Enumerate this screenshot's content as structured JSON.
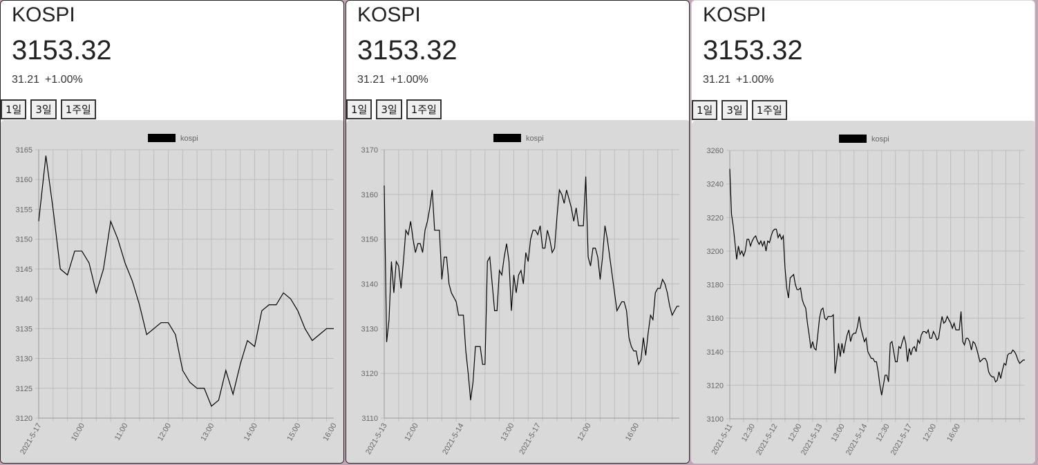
{
  "cards": [
    {
      "ticker": "KOSPI",
      "price": "3153.32",
      "change": "31.21",
      "pct": "+1.00%",
      "periods": [
        "1일",
        "3일",
        "1주일"
      ]
    },
    {
      "ticker": "KOSPI",
      "price": "3153.32",
      "change": "31.21",
      "pct": "+1.00%",
      "periods": [
        "1일",
        "3일",
        "1주일"
      ]
    },
    {
      "ticker": "KOSPI",
      "price": "3153.32",
      "change": "31.21",
      "pct": "+1.00%",
      "periods": [
        "1일",
        "3일",
        "1주일"
      ]
    }
  ],
  "chart_data": [
    {
      "type": "line",
      "legend": "kospi",
      "line_color": "#000000",
      "ylim": [
        3120,
        3165
      ],
      "yticks": [
        3120,
        3125,
        3130,
        3135,
        3140,
        3145,
        3150,
        3155,
        3160,
        3165
      ],
      "xtick_labels": [
        "2021-5-17",
        "10:00",
        "11:00",
        "12:00",
        "13:00",
        "14:00",
        "15:00",
        "16:00"
      ],
      "xtick_index": [
        0,
        6,
        12,
        18,
        24,
        30,
        36,
        42
      ],
      "grid": true,
      "values": [
        3153,
        3164,
        3155,
        3145,
        3144,
        3148,
        3148,
        3146,
        3141,
        3145,
        3153,
        3150,
        3146,
        3143,
        3139,
        3134,
        3135,
        3136,
        3136,
        3134,
        3128,
        3126,
        3125,
        3125,
        3122,
        3123,
        3128,
        3124,
        3129,
        3133,
        3132,
        3138,
        3139,
        3139,
        3141,
        3140,
        3138,
        3135,
        3133,
        3134,
        3135,
        3135
      ]
    },
    {
      "type": "line",
      "legend": "kospi",
      "line_color": "#000000",
      "ylim": [
        3110,
        3170
      ],
      "yticks": [
        3110,
        3120,
        3130,
        3140,
        3150,
        3160,
        3170
      ],
      "xtick_labels": [
        "2021-5-13",
        "12:00",
        "2021-5-14",
        "13:00",
        "2021-5-17",
        "12:00",
        "16:00"
      ],
      "xtick_index": [
        0,
        13,
        32,
        53,
        64,
        85,
        105
      ],
      "grid": true,
      "values": [
        3162,
        3127,
        3132,
        3145,
        3138,
        3145,
        3144,
        3139,
        3145,
        3152,
        3151,
        3154,
        3150,
        3147,
        3149,
        3149,
        3147,
        3152,
        3154,
        3157,
        3161,
        3152,
        3152,
        3152,
        3141,
        3146,
        3146,
        3140,
        3138,
        3137,
        3136,
        3133,
        3133,
        3133,
        3125,
        3120,
        3114,
        3118,
        3126,
        3126,
        3126,
        3122,
        3122,
        3145,
        3146,
        3140,
        3134,
        3134,
        3143,
        3142,
        3146,
        3149,
        3145,
        3134,
        3142,
        3138,
        3142,
        3143,
        3140,
        3147,
        3145,
        3150,
        3152,
        3152,
        3151,
        3153,
        3148,
        3148,
        3152,
        3150,
        3147,
        3148,
        3155,
        3161,
        3160,
        3158,
        3161,
        3159,
        3157,
        3154,
        3157,
        3153,
        3153,
        3153,
        3164,
        3146,
        3144,
        3148,
        3148,
        3146,
        3141,
        3146,
        3153,
        3150,
        3146,
        3142,
        3138,
        3134,
        3135,
        3136,
        3136,
        3134,
        3128,
        3126,
        3125,
        3125,
        3122,
        3123,
        3128,
        3124,
        3129,
        3133,
        3132,
        3138,
        3139,
        3139,
        3141,
        3140,
        3138,
        3135,
        3133,
        3134,
        3135,
        3135
      ]
    },
    {
      "type": "line",
      "legend": "kospi",
      "line_color": "#000000",
      "ylim": [
        3100,
        3260
      ],
      "yticks": [
        3100,
        3120,
        3140,
        3160,
        3180,
        3200,
        3220,
        3240,
        3260
      ],
      "xtick_labels": [
        "2021-5-11",
        "12:30",
        "2021-5-12",
        "12:00",
        "2021-5-13",
        "13:00",
        "2021-5-14",
        "12:30",
        "2021-5-17",
        "12:00",
        "16:00"
      ],
      "xtick_index": [
        0,
        13,
        26,
        40,
        52,
        65,
        78,
        91,
        104,
        118,
        132
      ],
      "grid": true,
      "values": [
        3249,
        3222,
        3215,
        3205,
        3195,
        3203,
        3198,
        3200,
        3197,
        3200,
        3207,
        3207,
        3203,
        3206,
        3208,
        3209,
        3206,
        3204,
        3206,
        3203,
        3206,
        3200,
        3206,
        3205,
        3209,
        3212,
        3213,
        3213,
        3208,
        3210,
        3207,
        3209,
        3190,
        3178,
        3172,
        3184,
        3185,
        3186,
        3180,
        3177,
        3177,
        3178,
        3171,
        3168,
        3166,
        3157,
        3150,
        3142,
        3146,
        3142,
        3141,
        3150,
        3160,
        3165,
        3166,
        3160,
        3159,
        3161,
        3161,
        3161,
        3162,
        3127,
        3135,
        3145,
        3137,
        3145,
        3139,
        3145,
        3150,
        3153,
        3146,
        3150,
        3151,
        3151,
        3155,
        3161,
        3154,
        3150,
        3146,
        3148,
        3140,
        3138,
        3136,
        3136,
        3134,
        3134,
        3128,
        3120,
        3114,
        3120,
        3126,
        3126,
        3122,
        3145,
        3146,
        3140,
        3134,
        3134,
        3143,
        3142,
        3146,
        3149,
        3145,
        3134,
        3142,
        3138,
        3142,
        3143,
        3140,
        3147,
        3145,
        3150,
        3152,
        3152,
        3151,
        3153,
        3148,
        3148,
        3152,
        3150,
        3147,
        3148,
        3155,
        3161,
        3157,
        3158,
        3161,
        3159,
        3157,
        3154,
        3157,
        3153,
        3153,
        3153,
        3164,
        3146,
        3144,
        3148,
        3148,
        3146,
        3141,
        3146,
        3145,
        3142,
        3138,
        3134,
        3135,
        3136,
        3136,
        3134,
        3128,
        3126,
        3125,
        3125,
        3122,
        3123,
        3128,
        3124,
        3129,
        3133,
        3132,
        3138,
        3139,
        3139,
        3141,
        3140,
        3138,
        3135,
        3133,
        3134,
        3135,
        3135
      ]
    }
  ]
}
